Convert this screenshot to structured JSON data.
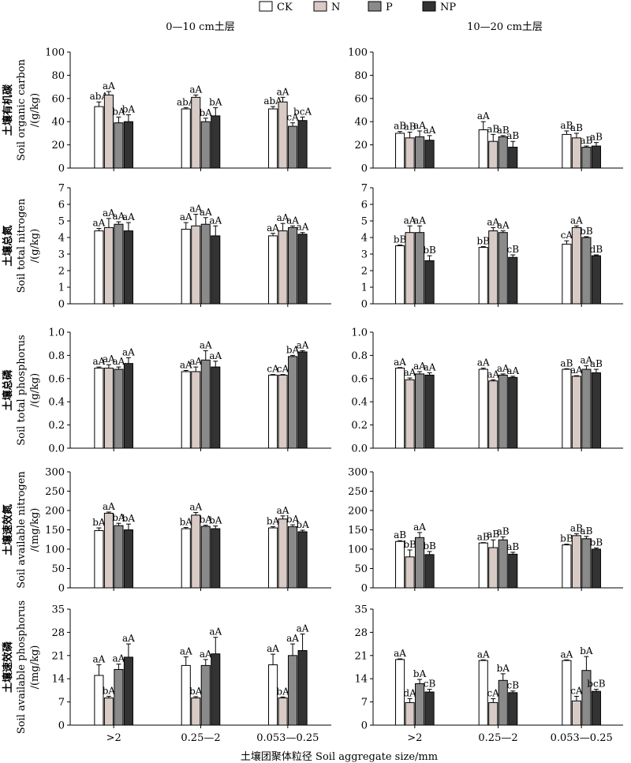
{
  "figure": {
    "legend": [
      {
        "name": "CK",
        "color": "#ffffff"
      },
      {
        "name": "N",
        "color": "#d8cbc6"
      },
      {
        "name": "P",
        "color": "#8a8a8a"
      },
      {
        "name": "NP",
        "color": "#333333"
      }
    ],
    "column_titles": [
      "0—10 cm土层",
      "10—20 cm土层"
    ],
    "xlabel": "土壤团聚体粒径 Soil aggregate size/mm"
  },
  "chart_data": [
    {
      "type": "bar",
      "ylabel_zh": "土壤有机碳",
      "ylabel_en": "Soil organic carbon",
      "ylabel_unit": "/(g/kg)",
      "ylim": [
        0,
        100
      ],
      "yticks": [
        0,
        20,
        40,
        60,
        80,
        100
      ],
      "categories": [
        ">2",
        "0.25—2",
        "0.053—0.25"
      ],
      "series": [
        {
          "name": "CK",
          "values": [
            53,
            51,
            51
          ],
          "errors": [
            4,
            1,
            2
          ],
          "labels": [
            "abA",
            "abA",
            "abA"
          ]
        },
        {
          "name": "N",
          "values": [
            63,
            61,
            57
          ],
          "errors": [
            3,
            2,
            4
          ],
          "labels": [
            "aA",
            "aA",
            "aA"
          ]
        },
        {
          "name": "P",
          "values": [
            39,
            40,
            36
          ],
          "errors": [
            5,
            3,
            3
          ],
          "labels": [
            "bA",
            "bA",
            "cA"
          ]
        },
        {
          "name": "NP",
          "values": [
            40,
            45,
            41
          ],
          "errors": [
            6,
            7,
            3
          ],
          "labels": [
            "bA",
            "bA",
            "bcA"
          ]
        }
      ]
    },
    {
      "type": "bar",
      "ylim": [
        0,
        100
      ],
      "yticks": [
        0,
        20,
        40,
        60,
        80,
        100
      ],
      "categories": [
        ">2",
        "0.25—2",
        "0.053—0.25"
      ],
      "series": [
        {
          "name": "CK",
          "values": [
            30,
            33,
            29
          ],
          "errors": [
            1.5,
            7,
            3
          ],
          "labels": [
            "aB",
            "aA",
            "aB"
          ]
        },
        {
          "name": "N",
          "values": [
            26,
            23,
            26
          ],
          "errors": [
            5,
            6,
            4
          ],
          "labels": [
            "aB",
            "aB",
            "aB"
          ]
        },
        {
          "name": "P",
          "values": [
            27,
            27,
            18
          ],
          "errors": [
            5,
            1,
            1
          ],
          "labels": [
            "aA",
            "aB",
            "aB"
          ]
        },
        {
          "name": "NP",
          "values": [
            24,
            18,
            19
          ],
          "errors": [
            4,
            5,
            3
          ],
          "labels": [
            "aA",
            "aB",
            "aB"
          ]
        }
      ]
    },
    {
      "type": "bar",
      "ylabel_zh": "土壤总氮",
      "ylabel_en": "Soil total nitrogen",
      "ylabel_unit": "/(g/kg)",
      "ylim": [
        0,
        7
      ],
      "yticks": [
        0,
        1,
        2,
        3,
        4,
        5,
        6,
        7
      ],
      "categories": [
        ">2",
        "0.25—2",
        "0.053—0.25"
      ],
      "series": [
        {
          "name": "CK",
          "values": [
            4.4,
            4.5,
            4.1
          ],
          "errors": [
            0.15,
            0.4,
            0.15
          ],
          "labels": [
            "aA",
            "aA",
            "aA"
          ]
        },
        {
          "name": "N",
          "values": [
            4.6,
            4.7,
            4.4
          ],
          "errors": [
            0.55,
            0.7,
            0.45
          ],
          "labels": [
            "aA",
            "aA",
            "aA"
          ]
        },
        {
          "name": "P",
          "values": [
            4.8,
            4.8,
            4.6
          ],
          "errors": [
            0.15,
            0.4,
            0.1
          ],
          "labels": [
            "aA",
            "aA",
            "aA"
          ]
        },
        {
          "name": "NP",
          "values": [
            4.4,
            4.1,
            4.2
          ],
          "errors": [
            0.5,
            0.6,
            0.1
          ],
          "labels": [
            "aA",
            "aA",
            "aA"
          ]
        }
      ]
    },
    {
      "type": "bar",
      "ylim": [
        0,
        7
      ],
      "yticks": [
        0,
        1,
        2,
        3,
        4,
        5,
        6,
        7
      ],
      "categories": [
        ">2",
        "0.25—2",
        "0.053—0.25"
      ],
      "series": [
        {
          "name": "CK",
          "values": [
            3.5,
            3.4,
            3.6
          ],
          "errors": [
            0.05,
            0.05,
            0.2
          ],
          "labels": [
            "bB",
            "bB",
            "cA"
          ]
        },
        {
          "name": "N",
          "values": [
            4.3,
            4.4,
            4.6
          ],
          "errors": [
            0.4,
            0.2,
            0.1
          ],
          "labels": [
            "aA",
            "aA",
            "aA"
          ]
        },
        {
          "name": "P",
          "values": [
            4.3,
            4.3,
            4.0
          ],
          "errors": [
            0.4,
            0.1,
            0.05
          ],
          "labels": [
            "aA",
            "aA",
            "bB"
          ]
        },
        {
          "name": "NP",
          "values": [
            2.6,
            2.8,
            2.9
          ],
          "errors": [
            0.3,
            0.15,
            0.05
          ],
          "labels": [
            "bB",
            "cB",
            "dB"
          ]
        }
      ]
    },
    {
      "type": "bar",
      "ylabel_zh": "土壤总磷",
      "ylabel_en": "Soil total phosphorus",
      "ylabel_unit": "/(g/kg)",
      "ylim": [
        0,
        1.0
      ],
      "yticks": [
        "0.0",
        "0.2",
        "0.4",
        "0.6",
        "0.8",
        "1.0"
      ],
      "categories": [
        ">2",
        "0.25—2",
        "0.053—0.25"
      ],
      "series": [
        {
          "name": "CK",
          "values": [
            0.69,
            0.66,
            0.63
          ],
          "errors": [
            0.01,
            0.01,
            0.005
          ],
          "labels": [
            "aA",
            "aA",
            "cA"
          ]
        },
        {
          "name": "N",
          "values": [
            0.69,
            0.66,
            0.63
          ],
          "errors": [
            0.03,
            0.04,
            0.005
          ],
          "labels": [
            "aA",
            "aA",
            "cA"
          ]
        },
        {
          "name": "P",
          "values": [
            0.68,
            0.76,
            0.79
          ],
          "errors": [
            0.02,
            0.08,
            0.01
          ],
          "labels": [
            "aA",
            "aA",
            "bA"
          ]
        },
        {
          "name": "NP",
          "values": [
            0.73,
            0.7,
            0.83
          ],
          "errors": [
            0.05,
            0.05,
            0.01
          ],
          "labels": [
            "aA",
            "aA",
            "aA"
          ]
        }
      ]
    },
    {
      "type": "bar",
      "ylim": [
        0,
        1.0
      ],
      "yticks": [
        "0.0",
        "0.2",
        "0.4",
        "0.6",
        "0.8",
        "1.0"
      ],
      "categories": [
        ">2",
        "0.25—2",
        "0.053—0.25"
      ],
      "series": [
        {
          "name": "CK",
          "values": [
            0.69,
            0.68,
            0.68
          ],
          "errors": [
            0.005,
            0.01,
            0.005
          ],
          "labels": [
            "aA",
            "aA",
            "aB"
          ]
        },
        {
          "name": "N",
          "values": [
            0.59,
            0.58,
            0.62
          ],
          "errors": [
            0.015,
            0.01,
            0.005
          ],
          "labels": [
            "aA",
            "aA",
            "aA"
          ]
        },
        {
          "name": "P",
          "values": [
            0.64,
            0.63,
            0.68
          ],
          "errors": [
            0.02,
            0.01,
            0.03
          ],
          "labels": [
            "aA",
            "aA",
            "aA"
          ]
        },
        {
          "name": "NP",
          "values": [
            0.63,
            0.61,
            0.65
          ],
          "errors": [
            0.02,
            0.01,
            0.03
          ],
          "labels": [
            "aA",
            "aA",
            "aB"
          ]
        }
      ]
    },
    {
      "type": "bar",
      "ylabel_zh": "土壤速效氮",
      "ylabel_en": "Soil available nitrogen",
      "ylabel_unit": "/(mg/kg)",
      "ylim": [
        0,
        300
      ],
      "yticks": [
        0,
        50,
        100,
        150,
        200,
        250,
        300
      ],
      "categories": [
        ">2",
        "0.25—2",
        "0.053—0.25"
      ],
      "series": [
        {
          "name": "CK",
          "values": [
            148,
            153,
            155
          ],
          "errors": [
            7,
            3,
            3
          ],
          "labels": [
            "bA",
            "bA",
            "bA"
          ]
        },
        {
          "name": "N",
          "values": [
            193,
            188,
            178
          ],
          "errors": [
            3,
            7,
            8
          ],
          "labels": [
            "aA",
            "aA",
            "aA"
          ]
        },
        {
          "name": "P",
          "values": [
            161,
            159,
            158
          ],
          "errors": [
            6,
            3,
            5
          ],
          "labels": [
            "bA",
            "bA",
            "bA"
          ]
        },
        {
          "name": "NP",
          "values": [
            150,
            153,
            145
          ],
          "errors": [
            15,
            7,
            4
          ],
          "labels": [
            "bA",
            "bA",
            "bA"
          ]
        }
      ]
    },
    {
      "type": "bar",
      "ylim": [
        0,
        300
      ],
      "yticks": [
        0,
        50,
        100,
        150,
        200,
        250,
        300
      ],
      "categories": [
        ">2",
        "0.25—2",
        "0.053—0.25"
      ],
      "series": [
        {
          "name": "CK",
          "values": [
            120,
            116,
            111
          ],
          "errors": [
            2,
            1,
            2
          ],
          "labels": [
            "aB",
            "aB",
            "bB"
          ]
        },
        {
          "name": "N",
          "values": [
            80,
            104,
            135
          ],
          "errors": [
            18,
            20,
            5
          ],
          "labels": [
            "bB",
            "aB",
            "aB"
          ]
        },
        {
          "name": "P",
          "values": [
            130,
            124,
            127
          ],
          "errors": [
            13,
            8,
            6
          ],
          "labels": [
            "aA",
            "aB",
            "aB"
          ]
        },
        {
          "name": "NP",
          "values": [
            86,
            87,
            100
          ],
          "errors": [
            8,
            5,
            3
          ],
          "labels": [
            "bB",
            "aB",
            "bB"
          ]
        }
      ]
    },
    {
      "type": "bar",
      "ylabel_zh": "土壤速效磷",
      "ylabel_en": "Soil available phosphorus",
      "ylabel_unit": "/(mg/kg)",
      "ylim": [
        0,
        35
      ],
      "yticks": [
        0,
        7,
        14,
        21,
        28,
        35
      ],
      "categories": [
        ">2",
        "0.25—2",
        "0.053—0.25"
      ],
      "series": [
        {
          "name": "CK",
          "values": [
            15,
            18,
            18.2
          ],
          "errors": [
            3.2,
            2.6,
            3.2
          ],
          "labels": [
            "aA",
            "aA",
            "aA"
          ]
        },
        {
          "name": "N",
          "values": [
            8.2,
            8.2,
            8.2
          ],
          "errors": [
            0.5,
            0.4,
            0.3
          ],
          "labels": [
            "bA",
            "bA",
            "bA"
          ]
        },
        {
          "name": "P",
          "values": [
            16.8,
            18,
            21
          ],
          "errors": [
            1.6,
            1.8,
            3.5
          ],
          "labels": [
            "aA",
            "aA",
            "aA"
          ]
        },
        {
          "name": "NP",
          "values": [
            20.5,
            21.5,
            22.5
          ],
          "errors": [
            4,
            5,
            5
          ],
          "labels": [
            "aA",
            "aA",
            "aA"
          ]
        }
      ]
    },
    {
      "type": "bar",
      "ylim": [
        0,
        35
      ],
      "yticks": [
        0,
        7,
        14,
        21,
        28,
        35
      ],
      "categories": [
        ">2",
        "0.25—2",
        "0.053—0.25"
      ],
      "series": [
        {
          "name": "CK",
          "values": [
            19.8,
            19.5,
            19.5
          ],
          "errors": [
            0.2,
            0.2,
            0.2
          ],
          "labels": [
            "aA",
            "aA",
            "aA"
          ]
        },
        {
          "name": "N",
          "values": [
            6.8,
            6.8,
            7.3
          ],
          "errors": [
            1.2,
            1.2,
            1.4
          ],
          "labels": [
            "dA",
            "cA",
            "cA"
          ]
        },
        {
          "name": "P",
          "values": [
            12.5,
            13.5,
            16.5
          ],
          "errors": [
            1.3,
            2,
            4.2
          ],
          "labels": [
            "bA",
            "bA",
            "bA"
          ]
        },
        {
          "name": "NP",
          "values": [
            10,
            9.8,
            10.2
          ],
          "errors": [
            0.8,
            0.5,
            0.6
          ],
          "labels": [
            "cB",
            "cB",
            "bcB"
          ]
        }
      ]
    }
  ]
}
